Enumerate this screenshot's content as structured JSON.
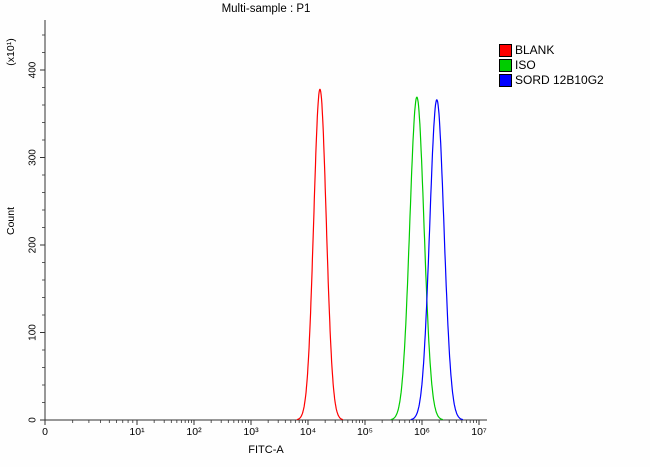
{
  "chart_data": {
    "type": "line",
    "subtype": "flow-cytometry-histogram-overlay",
    "title": "Multi-sample : P1",
    "xlabel": "FITC-A",
    "ylabel": "Count",
    "y_axis_multiplier_label": "(x10¹)",
    "x_scale": "log10",
    "x_tick_labels": [
      "0",
      "10¹",
      "10²",
      "10³",
      "10⁴",
      "10⁵",
      "10⁶",
      "10⁷"
    ],
    "y_ticks": [
      0,
      100,
      200,
      300,
      400
    ],
    "y_minor_step": 20,
    "ylim": [
      0,
      455
    ],
    "xlim_log10": [
      0,
      7.15
    ],
    "grid": false,
    "legend_position": "top-right-outside",
    "curve_model": "gaussian in log10(x)",
    "series": [
      {
        "name": "BLANK",
        "color": "#ff0000",
        "peak_x": 16000,
        "peak_log10": 4.21,
        "peak_count": 378,
        "sigma_log10": 0.11
      },
      {
        "name": "ISO",
        "color": "#00cc00",
        "peak_x": 810000,
        "peak_log10": 5.91,
        "peak_count": 369,
        "sigma_log10": 0.125
      },
      {
        "name": "SORD 12B10G2",
        "color": "#0000ff",
        "peak_x": 1800000,
        "peak_log10": 6.26,
        "peak_count": 366,
        "sigma_log10": 0.125
      }
    ]
  }
}
